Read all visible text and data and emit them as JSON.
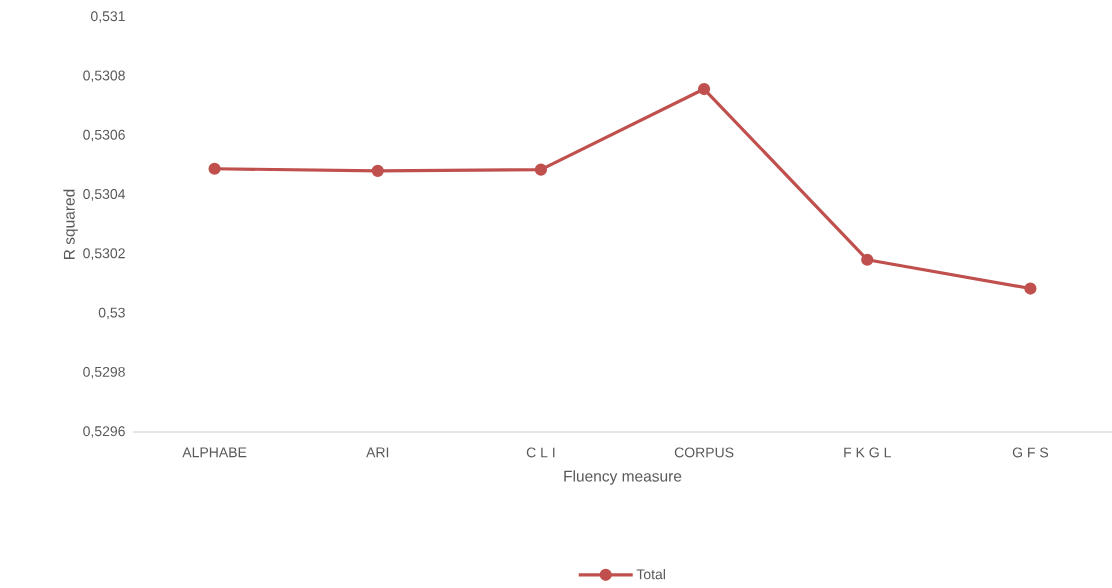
{
  "chart_data": {
    "type": "line",
    "xlabel": "Fluency measure",
    "ylabel": "R squared",
    "categories": [
      "ALPHABE",
      "ARI",
      "C L  I",
      "CORPUS",
      "F K G L",
      "G F S"
    ],
    "series": [
      {
        "name": "Total",
        "color": "#c0504d",
        "values": [
          0.530488,
          0.530481,
          0.530485,
          0.530757,
          0.530181,
          0.530084
        ]
      }
    ],
    "ylim": [
      0.5296,
      0.531
    ],
    "yticks": [
      {
        "value": 0.5296,
        "label": "0,5296"
      },
      {
        "value": 0.5298,
        "label": "0,5298"
      },
      {
        "value": 0.53,
        "label": "0,53"
      },
      {
        "value": 0.5302,
        "label": "0,5302"
      },
      {
        "value": 0.5304,
        "label": "0,5304"
      },
      {
        "value": 0.5306,
        "label": "0,5306"
      },
      {
        "value": 0.5308,
        "label": "0,5308"
      },
      {
        "value": 0.531,
        "label": "0,531"
      }
    ],
    "legend": "bottom",
    "marker": "circle",
    "line_style": "solid"
  }
}
